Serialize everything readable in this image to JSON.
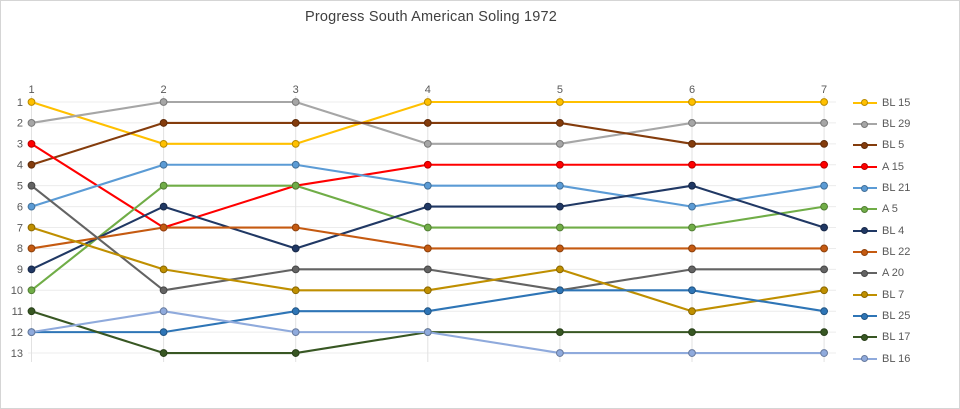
{
  "chart_data": {
    "type": "line",
    "title": "Progress South American Soling 1972",
    "x_ticks": [
      "1",
      "2",
      "3",
      "4",
      "5",
      "6",
      "7"
    ],
    "x_ticks_position": "top",
    "y_ticks": [
      "1",
      "2",
      "3",
      "4",
      "5",
      "6",
      "7",
      "8",
      "9",
      "10",
      "11",
      "12",
      "13"
    ],
    "y_axis": {
      "min": 1,
      "max": 13,
      "inverted": true
    },
    "grid": true,
    "legend_position": "right",
    "series": [
      {
        "name": "BL 15",
        "color": "#FFC000",
        "values": [
          1,
          3,
          3,
          1,
          1,
          1,
          1
        ]
      },
      {
        "name": "BL 29",
        "color": "#A6A6A6",
        "values": [
          2,
          1,
          1,
          3,
          3,
          2,
          2
        ]
      },
      {
        "name": "BL 5",
        "color": "#843C0C",
        "values": [
          4,
          2,
          2,
          2,
          2,
          3,
          3
        ]
      },
      {
        "name": "A 15",
        "color": "#FF0000",
        "values": [
          3,
          7,
          5,
          4,
          4,
          4,
          4
        ]
      },
      {
        "name": "BL 21",
        "color": "#5B9BD5",
        "values": [
          6,
          4,
          4,
          5,
          5,
          6,
          5
        ]
      },
      {
        "name": "A 5",
        "color": "#70AD47",
        "values": [
          10,
          5,
          5,
          7,
          7,
          7,
          6
        ]
      },
      {
        "name": "BL 4",
        "color": "#203864",
        "values": [
          9,
          6,
          8,
          6,
          6,
          5,
          7
        ]
      },
      {
        "name": "BL 22",
        "color": "#C55A11",
        "values": [
          8,
          7,
          7,
          8,
          8,
          8,
          8
        ]
      },
      {
        "name": "A 20",
        "color": "#636363",
        "values": [
          5,
          10,
          9,
          9,
          10,
          9,
          9
        ]
      },
      {
        "name": "BL 7",
        "color": "#BF8F00",
        "values": [
          7,
          9,
          10,
          10,
          9,
          11,
          10
        ]
      },
      {
        "name": "BL 25",
        "color": "#2E75B6",
        "values": [
          12,
          12,
          11,
          11,
          10,
          10,
          11
        ]
      },
      {
        "name": "BL 17",
        "color": "#385723",
        "values": [
          11,
          13,
          13,
          12,
          12,
          12,
          12
        ]
      },
      {
        "name": "BL 16",
        "color": "#8FAADC",
        "values": [
          12,
          11,
          12,
          12,
          13,
          13,
          13
        ]
      }
    ]
  },
  "styles": {
    "background": "#ffffff",
    "frame_border": "#d5d5d5",
    "grid_color_h": "#ececec",
    "grid_color_v": "#e2e2e2",
    "tick_text_color": "#595959",
    "title_color": "#404040"
  }
}
